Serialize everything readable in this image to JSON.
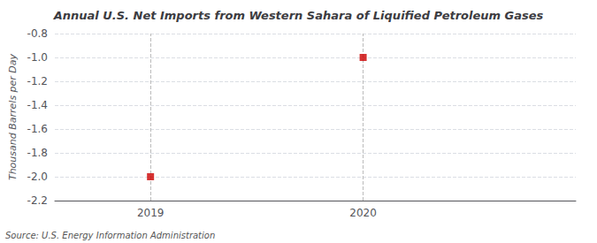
{
  "chart_data": {
    "type": "scatter",
    "title": "Annual U.S. Net Imports from Western Sahara of Liquified Petroleum Gases",
    "ylabel": "Thousand Barrels per Day",
    "source": "Source: U.S. Energy Information Administration",
    "x": [
      2019,
      2020
    ],
    "values": [
      -2.0,
      -1.0
    ],
    "color": "#cc0000",
    "marker": "square",
    "xlim": [
      2018.55,
      2021.0
    ],
    "xticks": [
      2019,
      2020
    ],
    "ylim": [
      -2.2,
      -0.8
    ],
    "yticks": [
      -2.2,
      {
        "value": -2.0,
        "label": "-2.0"
      },
      -1.8,
      -1.6,
      -1.4,
      -1.2,
      {
        "value": -1.0,
        "label": "-1.0"
      },
      -0.8
    ],
    "grid": true,
    "vlines": [
      2019,
      2020
    ]
  }
}
